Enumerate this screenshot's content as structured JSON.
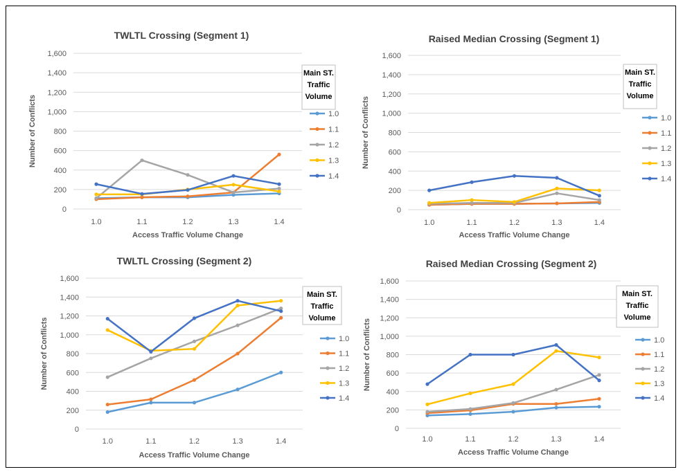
{
  "legend_title_lines": [
    "Main ST.",
    "Traffic",
    "Volume"
  ],
  "colors": {
    "1.0": "#5b9bd5",
    "1.1": "#ed7d31",
    "1.2": "#a5a5a5",
    "1.3": "#ffc000",
    "1.4": "#4472c4",
    "gridline": "#d9d9d9",
    "text": "#595959",
    "title": "#404040"
  },
  "chart_data": [
    {
      "type": "line",
      "title": "TWLTL Crossing (Segment 1)",
      "xlabel": "Access Traffic Volume Change",
      "ylabel": "Number of Conflicts",
      "x": [
        "1.0",
        "1.1",
        "1.2",
        "1.3",
        "1.4"
      ],
      "ylim": [
        0,
        1600
      ],
      "yticks": [
        "0",
        "200",
        "400",
        "600",
        "800",
        "1,000",
        "1,200",
        "1,400",
        "1,600"
      ],
      "grid": true,
      "legend_position": "right",
      "series": [
        {
          "name": "1.0",
          "values": [
            110,
            120,
            120,
            145,
            160
          ]
        },
        {
          "name": "1.1",
          "values": [
            100,
            120,
            130,
            170,
            560
          ]
        },
        {
          "name": "1.2",
          "values": [
            110,
            500,
            350,
            170,
            210
          ]
        },
        {
          "name": "1.3",
          "values": [
            150,
            150,
            200,
            250,
            180
          ]
        },
        {
          "name": "1.4",
          "values": [
            255,
            155,
            195,
            340,
            255
          ]
        }
      ]
    },
    {
      "type": "line",
      "title": "Raised Median Crossing (Segment 1)",
      "xlabel": "Access Traffic Volume Change",
      "ylabel": "Number of Conflicts",
      "x": [
        "1.0",
        "1.1",
        "1.2",
        "1.3",
        "1.4"
      ],
      "ylim": [
        0,
        1600
      ],
      "yticks": [
        "0",
        "200",
        "400",
        "600",
        "800",
        "1,000",
        "1,200",
        "1,400",
        "1,600"
      ],
      "grid": true,
      "legend_position": "right",
      "series": [
        {
          "name": "1.0",
          "values": [
            50,
            60,
            60,
            65,
            70
          ]
        },
        {
          "name": "1.1",
          "values": [
            50,
            60,
            60,
            65,
            80
          ]
        },
        {
          "name": "1.2",
          "values": [
            60,
            70,
            70,
            170,
            100
          ]
        },
        {
          "name": "1.3",
          "values": [
            70,
            100,
            80,
            220,
            200
          ]
        },
        {
          "name": "1.4",
          "values": [
            200,
            285,
            350,
            330,
            145
          ]
        }
      ]
    },
    {
      "type": "line",
      "title": "TWLTL Crossing (Segment 2)",
      "xlabel": "Access Traffic Volume Change",
      "ylabel": "Number of Conflicts",
      "x": [
        "1.0",
        "1.1",
        "1.2",
        "1.3",
        "1.4"
      ],
      "ylim": [
        0,
        1600
      ],
      "yticks": [
        "0",
        "200",
        "400",
        "600",
        "800",
        "1,000",
        "1,200",
        "1,400",
        "1,600"
      ],
      "grid": true,
      "legend_position": "right",
      "series": [
        {
          "name": "1.0",
          "values": [
            180,
            280,
            280,
            420,
            600
          ]
        },
        {
          "name": "1.1",
          "values": [
            260,
            315,
            520,
            800,
            1180
          ]
        },
        {
          "name": "1.2",
          "values": [
            550,
            750,
            930,
            1100,
            1280
          ]
        },
        {
          "name": "1.3",
          "values": [
            1050,
            830,
            850,
            1310,
            1360
          ]
        },
        {
          "name": "1.4",
          "values": [
            1170,
            820,
            1175,
            1360,
            1250
          ]
        }
      ]
    },
    {
      "type": "line",
      "title": "Raised Median Crossing (Segment 2)",
      "xlabel": "Access Traffic Volume Change",
      "ylabel": "Number of Conflicts",
      "x": [
        "1.0",
        "1.1",
        "1.2",
        "1.3",
        "1.4"
      ],
      "ylim": [
        0,
        1600
      ],
      "yticks": [
        "0",
        "200",
        "400",
        "600",
        "800",
        "1,000",
        "1,200",
        "1,400",
        "1,600"
      ],
      "grid": true,
      "legend_position": "right",
      "series": [
        {
          "name": "1.0",
          "values": [
            140,
            155,
            180,
            225,
            235
          ]
        },
        {
          "name": "1.1",
          "values": [
            165,
            195,
            265,
            265,
            320
          ]
        },
        {
          "name": "1.2",
          "values": [
            180,
            210,
            275,
            420,
            580
          ]
        },
        {
          "name": "1.3",
          "values": [
            260,
            380,
            480,
            840,
            770
          ]
        },
        {
          "name": "1.4",
          "values": [
            480,
            800,
            800,
            905,
            520
          ]
        }
      ]
    }
  ]
}
